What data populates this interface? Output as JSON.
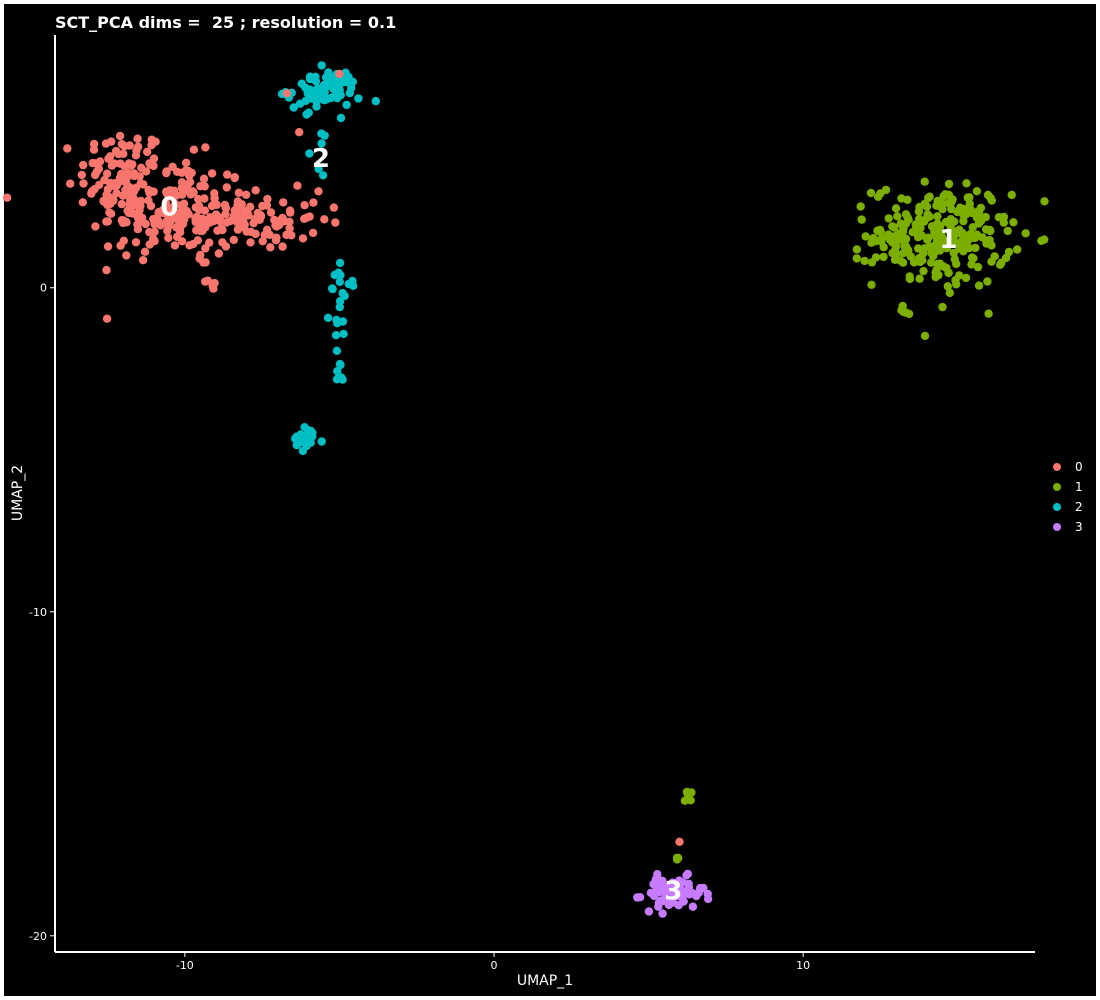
{
  "chart_data": {
    "type": "scatter",
    "title": "SCT_PCA dims =  25 ; resolution = 0.1",
    "xlabel": "UMAP_1",
    "ylabel": "UMAP_2",
    "xlim": [
      -14.2,
      17.5
    ],
    "ylim": [
      -20.5,
      7.8
    ],
    "x_ticks": [
      -10,
      0,
      10
    ],
    "y_ticks": [
      0,
      -10,
      -20
    ],
    "x_tick_labels": [
      "-10",
      "0",
      "10"
    ],
    "y_tick_labels": [
      "0",
      "-10",
      "-20"
    ],
    "grid": false,
    "legend_position": "right",
    "background": "#000000",
    "axis_color": "#ffffff",
    "series": [
      {
        "name": "0",
        "color": "#F8766D"
      },
      {
        "name": "1",
        "color": "#7CAE00"
      },
      {
        "name": "2",
        "color": "#00BFC4"
      },
      {
        "name": "3",
        "color": "#C77CFF"
      }
    ],
    "cluster_labels": [
      {
        "text": "0",
        "x": -10.5,
        "y": 2.5
      },
      {
        "text": "1",
        "x": 14.7,
        "y": 1.5
      },
      {
        "text": "2",
        "x": -5.6,
        "y": 4.0
      },
      {
        "text": "3",
        "x": 5.8,
        "y": -18.6
      }
    ],
    "blobs": [
      {
        "cluster": 0,
        "cx": -12.0,
        "cy": 3.5,
        "sx": 0.7,
        "sy": 0.7,
        "n": 90
      },
      {
        "cluster": 0,
        "cx": -10.5,
        "cy": 2.4,
        "sx": 1.3,
        "sy": 0.8,
        "n": 150
      },
      {
        "cluster": 0,
        "cx": -8.0,
        "cy": 2.1,
        "sx": 1.2,
        "sy": 0.45,
        "n": 110
      },
      {
        "cluster": 0,
        "cx": -9.3,
        "cy": 0.4,
        "sx": 0.15,
        "sy": 0.35,
        "n": 8
      },
      {
        "cluster": 2,
        "cx": -5.5,
        "cy": 6.1,
        "sx": 0.6,
        "sy": 0.3,
        "n": 80
      },
      {
        "cluster": 2,
        "cx": -5.8,
        "cy": 4.1,
        "sx": 0.15,
        "sy": 0.3,
        "n": 6
      },
      {
        "cluster": 2,
        "cx": -4.9,
        "cy": -0.5,
        "sx": 0.2,
        "sy": 0.6,
        "n": 20
      },
      {
        "cluster": 2,
        "cx": -5.0,
        "cy": -2.5,
        "sx": 0.12,
        "sy": 0.3,
        "n": 8
      },
      {
        "cluster": 2,
        "cx": -6.1,
        "cy": -4.7,
        "sx": 0.3,
        "sy": 0.2,
        "n": 22
      },
      {
        "cluster": 1,
        "cx": 14.5,
        "cy": 1.6,
        "sx": 1.1,
        "sy": 0.8,
        "n": 230
      },
      {
        "cluster": 1,
        "cx": 12.8,
        "cy": 1.5,
        "sx": 0.6,
        "sy": 0.15,
        "n": 20
      },
      {
        "cluster": 1,
        "cx": 13.2,
        "cy": -0.7,
        "sx": 0.12,
        "sy": 0.12,
        "n": 5
      },
      {
        "cluster": 1,
        "cx": 6.3,
        "cy": -15.6,
        "sx": 0.06,
        "sy": 0.12,
        "n": 5
      },
      {
        "cluster": 1,
        "cx": 5.9,
        "cy": -17.6,
        "sx": 0.05,
        "sy": 0.12,
        "n": 3
      },
      {
        "cluster": 3,
        "cx": 5.8,
        "cy": -18.7,
        "sx": 0.5,
        "sy": 0.25,
        "n": 70
      }
    ],
    "extra_points": [
      {
        "cluster": 0,
        "x": -6.7,
        "y": 6.0
      },
      {
        "cluster": 0,
        "x": -5.0,
        "y": 6.6
      },
      {
        "cluster": 0,
        "x": -6.3,
        "y": 4.8
      },
      {
        "cluster": 0,
        "x": 6.0,
        "y": -17.1
      }
    ]
  }
}
